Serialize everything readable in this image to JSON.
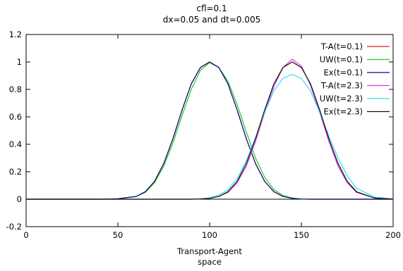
{
  "chart_data": {
    "type": "line",
    "title": "cfl=0.1",
    "subtitle": "dx=0.05 and dt=0.005",
    "xlabel": "Transport-Agent",
    "xlabel2": "space",
    "ylabel": "",
    "xlim": [
      0,
      200
    ],
    "ylim": [
      -0.2,
      1.2
    ],
    "x_ticks": [
      0,
      50,
      100,
      150,
      200
    ],
    "y_ticks": [
      -0.2,
      0,
      0.2,
      0.4,
      0.6,
      0.8,
      1,
      1.2
    ],
    "grid": false,
    "legend_position": "top-right",
    "x": [
      0,
      40,
      50,
      60,
      65,
      70,
      75,
      80,
      85,
      90,
      95,
      100,
      105,
      110,
      115,
      120,
      125,
      130,
      135,
      140,
      145,
      150,
      155,
      160,
      165,
      170,
      175,
      180,
      190,
      200
    ],
    "series": [
      {
        "name": "T-A(t=0.1)",
        "color": "#e41a1c",
        "values": [
          0,
          0,
          0.003,
          0.02,
          0.055,
          0.13,
          0.26,
          0.44,
          0.65,
          0.84,
          0.96,
          1.0,
          0.96,
          0.84,
          0.65,
          0.44,
          0.26,
          0.13,
          0.055,
          0.02,
          0.006,
          0.001,
          0,
          0,
          0,
          0,
          0,
          0,
          0,
          0
        ]
      },
      {
        "name": "UW(t=0.1)",
        "color": "#22cc22",
        "values": [
          0,
          0,
          0.003,
          0.02,
          0.05,
          0.12,
          0.24,
          0.41,
          0.61,
          0.8,
          0.94,
          0.995,
          0.96,
          0.86,
          0.69,
          0.49,
          0.3,
          0.16,
          0.07,
          0.027,
          0.009,
          0.002,
          0,
          0,
          0,
          0,
          0,
          0,
          0,
          0
        ]
      },
      {
        "name": "Ex(t=0.1)",
        "color": "#0a0a88",
        "values": [
          0,
          0,
          0.003,
          0.02,
          0.055,
          0.13,
          0.26,
          0.44,
          0.65,
          0.84,
          0.96,
          1.0,
          0.96,
          0.84,
          0.65,
          0.44,
          0.26,
          0.13,
          0.055,
          0.02,
          0.006,
          0.001,
          0,
          0,
          0,
          0,
          0,
          0,
          0,
          0
        ]
      },
      {
        "name": "T-A(t=2.3)",
        "color": "#e633e6",
        "values": [
          0,
          0,
          0,
          0,
          0,
          0,
          0,
          0,
          0,
          0,
          0.002,
          0.006,
          0.02,
          0.05,
          0.12,
          0.24,
          0.42,
          0.63,
          0.82,
          0.96,
          1.02,
          0.97,
          0.83,
          0.63,
          0.42,
          0.24,
          0.12,
          0.05,
          0.008,
          0.001
        ]
      },
      {
        "name": "UW(t=2.3)",
        "color": "#33e0ee",
        "values": [
          0,
          0,
          0,
          0,
          0,
          0,
          0,
          0,
          0,
          0,
          0.003,
          0.01,
          0.03,
          0.07,
          0.15,
          0.28,
          0.45,
          0.63,
          0.79,
          0.88,
          0.91,
          0.88,
          0.79,
          0.63,
          0.46,
          0.3,
          0.17,
          0.08,
          0.015,
          0.002
        ]
      },
      {
        "name": "Ex(t=2.3)",
        "color": "#111111",
        "values": [
          0,
          0,
          0,
          0,
          0,
          0,
          0,
          0,
          0,
          0,
          0.002,
          0.006,
          0.02,
          0.055,
          0.13,
          0.26,
          0.44,
          0.65,
          0.84,
          0.96,
          1.0,
          0.96,
          0.84,
          0.65,
          0.44,
          0.26,
          0.13,
          0.055,
          0.008,
          0.001
        ]
      }
    ]
  }
}
